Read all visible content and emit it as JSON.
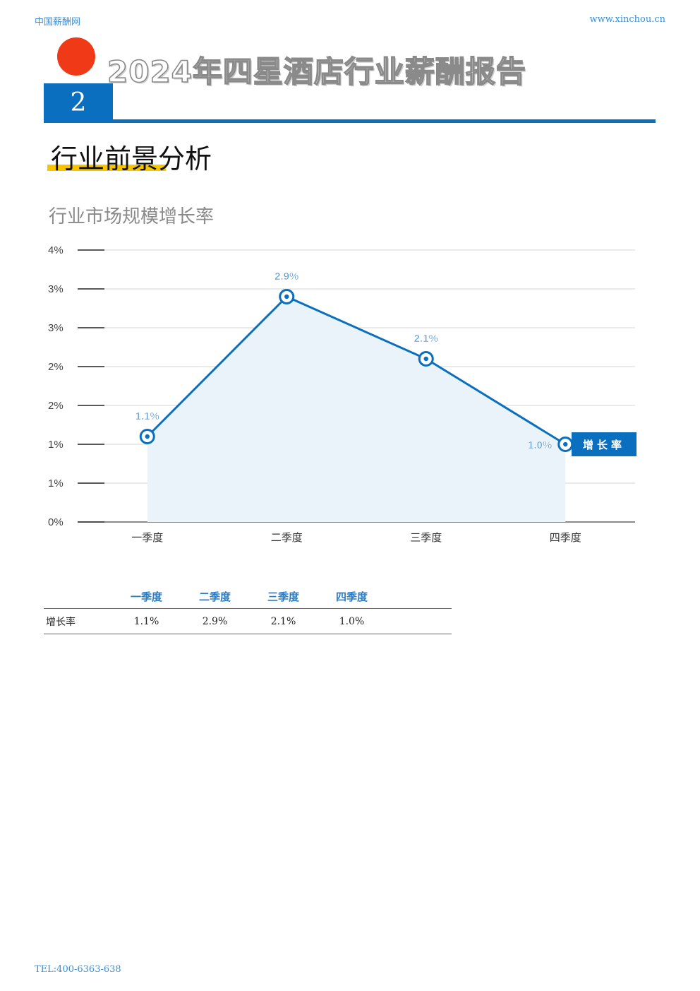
{
  "header": {
    "site_name": "中国薪酬网",
    "site_url": "www.xinchou.cn",
    "report_title": "2024年四星酒店行业薪酬报告",
    "page_number": "2"
  },
  "section": {
    "title": "行业前景分析"
  },
  "colors": {
    "accent_blue": "#0b6fc0",
    "red_dot": "#f03a17",
    "underline_yellow": "#f7c400",
    "area_fill": "#eaf2fa"
  },
  "chart_data": {
    "type": "area",
    "title": "行业市场规模增长率",
    "categories": [
      "一季度",
      "二季度",
      "三季度",
      "四季度"
    ],
    "series": [
      {
        "name": "增长率",
        "values": [
          1.1,
          2.9,
          2.1,
          1.0
        ],
        "labels": [
          "1.1%",
          "2.9%",
          "2.1%",
          "1.0%"
        ]
      }
    ],
    "ylim": [
      0,
      3.5
    ],
    "y_ticks": [
      0,
      0.5,
      1.0,
      1.5,
      2.0,
      2.5,
      3.0,
      3.5
    ],
    "y_tick_labels": [
      "0%",
      "1%",
      "1%",
      "2%",
      "2%",
      "3%",
      "3%",
      "4%"
    ],
    "grid": true,
    "legend": "right"
  },
  "table": {
    "headers": [
      "",
      "一季度",
      "二季度",
      "三季度",
      "四季度"
    ],
    "row_name": "增长率",
    "values": [
      "1.1%",
      "2.9%",
      "2.1%",
      "1.0%"
    ]
  },
  "footer": {
    "tel": "TEL:400-6363-638"
  }
}
